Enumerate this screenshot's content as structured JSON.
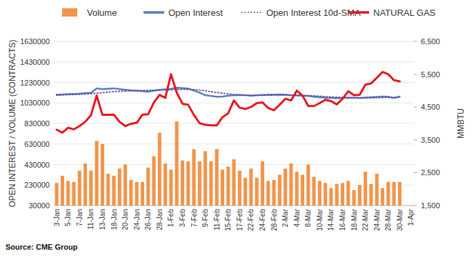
{
  "chart_data": {
    "type": "bar",
    "source": "Source: CME Group",
    "y_label": "OPEN INTEREST / VOLUME (CONTRACTS)",
    "y2_label": "MMBTU",
    "categories": [
      "3-Jan",
      null,
      "5-Jan",
      null,
      "7-Jan",
      null,
      "11-Jan",
      null,
      "13-Jan",
      null,
      "18-Jan",
      null,
      "20-Jan",
      null,
      "24-Jan",
      null,
      "26-Jan",
      null,
      "28-Jan",
      null,
      "1-Feb",
      null,
      "3-Feb",
      null,
      "7-Feb",
      null,
      "9-Feb",
      null,
      "11-Feb",
      null,
      "15-Feb",
      null,
      "17-Feb",
      null,
      "22-Feb",
      null,
      "24-Feb",
      null,
      "28-Feb",
      null,
      "2-Mar",
      null,
      "4-Mar",
      null,
      "8-Mar",
      null,
      "10-Mar",
      null,
      "14-Mar",
      null,
      "16-Mar",
      null,
      "18-Mar",
      null,
      "22-Mar",
      null,
      "24-Mar",
      null,
      "28-Mar",
      null,
      "30-Mar",
      null,
      "1-Apr"
    ],
    "series": [
      {
        "name": "Volume",
        "type": "bar",
        "color": "#f0954c",
        "values": [
          250000,
          320000,
          270000,
          260000,
          370000,
          440000,
          370000,
          660000,
          630000,
          340000,
          320000,
          390000,
          430000,
          280000,
          260000,
          260000,
          400000,
          510000,
          740000,
          440000,
          380000,
          850000,
          470000,
          460000,
          580000,
          460000,
          560000,
          460000,
          580000,
          380000,
          410000,
          480000,
          370000,
          300000,
          390000,
          300000,
          460000,
          270000,
          280000,
          330000,
          390000,
          440000,
          360000,
          330000,
          430000,
          310000,
          270000,
          250000,
          200000,
          240000,
          250000,
          270000,
          180000,
          230000,
          360000,
          240000,
          340000,
          200000,
          260000,
          260000,
          260000,
          null,
          null
        ]
      },
      {
        "name": "Open Interest",
        "type": "line",
        "color": "#4f7fbd",
        "line_style": "solid",
        "values": [
          1110000,
          1112000,
          1115000,
          1118000,
          1120000,
          1125000,
          1130000,
          1172000,
          1165000,
          1168000,
          1172000,
          1165000,
          1158000,
          1152000,
          1150000,
          1145000,
          1140000,
          1150000,
          1158000,
          1162000,
          1168000,
          1178000,
          1175000,
          1170000,
          1150000,
          1130000,
          1105000,
          1098000,
          1090000,
          1092000,
          1100000,
          1105000,
          1108000,
          1105000,
          1100000,
          1105000,
          1108000,
          1110000,
          1110000,
          1112000,
          1110000,
          1105000,
          1102000,
          1100000,
          1098000,
          1090000,
          1085000,
          1080000,
          1078000,
          1075000,
          1078000,
          1080000,
          1080000,
          1078000,
          1082000,
          1085000,
          1088000,
          1092000,
          1090000,
          1078000,
          1092000,
          null,
          null
        ]
      },
      {
        "name": "Open Interest 10d-SMA",
        "type": "line",
        "color": "#6b3fa0",
        "line_style": "dotted",
        "values": [
          1105000,
          1108000,
          1110000,
          1112000,
          1114000,
          1117000,
          1120000,
          1125000,
          1130000,
          1135000,
          1140000,
          1143000,
          1146000,
          1148000,
          1150000,
          1152000,
          1153000,
          1154000,
          1155000,
          1156000,
          1158000,
          1160000,
          1162000,
          1163000,
          1160000,
          1155000,
          1148000,
          1140000,
          1132000,
          1125000,
          1118000,
          1112000,
          1108000,
          1105000,
          1103000,
          1103000,
          1104000,
          1105000,
          1106000,
          1107000,
          1107000,
          1107000,
          1106000,
          1104000,
          1102000,
          1099000,
          1096000,
          1092000,
          1089000,
          1086000,
          1084000,
          1082000,
          1080000,
          1079000,
          1079000,
          1080000,
          1081000,
          1082000,
          1083000,
          1084000,
          1085000,
          null,
          null
        ]
      },
      {
        "name": "NATURAL GAS",
        "type": "line",
        "color": "#e8131b",
        "line_style": "solid",
        "axis": "y2",
        "values": [
          3810,
          3720,
          3870,
          3820,
          3920,
          4050,
          4250,
          4850,
          4260,
          4260,
          4270,
          4050,
          3920,
          3990,
          4020,
          4270,
          4280,
          4640,
          4870,
          4780,
          5500,
          4940,
          4600,
          4570,
          4260,
          4010,
          3960,
          3940,
          3940,
          4190,
          4310,
          4700,
          4480,
          4440,
          4500,
          4620,
          4640,
          4470,
          4400,
          4570,
          4750,
          4700,
          5000,
          4850,
          4530,
          4530,
          4620,
          4720,
          4680,
          4580,
          4750,
          4980,
          4860,
          4870,
          5180,
          5220,
          5390,
          5570,
          5500,
          5320,
          5280,
          null,
          null
        ]
      }
    ],
    "ylim": [
      30000,
      1630000
    ],
    "yticks": [
      30000,
      230000,
      430000,
      630000,
      830000,
      1030000,
      1230000,
      1430000,
      1630000
    ],
    "y2lim": [
      1500,
      6500
    ],
    "y2ticks": [
      {
        "value": 1500,
        "label": "1,500"
      },
      {
        "value": 2500,
        "label": "2,500"
      },
      {
        "value": 3500,
        "label": "3,500"
      },
      {
        "value": 4500,
        "label": "4,500"
      },
      {
        "value": 5500,
        "label": "5,500"
      },
      {
        "value": 6500,
        "label": "6,500"
      }
    ],
    "grid": true,
    "legend": "top"
  }
}
